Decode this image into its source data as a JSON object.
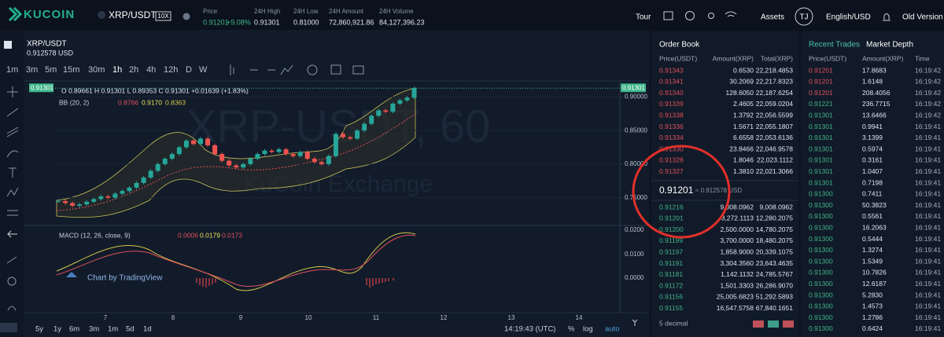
{
  "header": {
    "logo": "KUCOIN",
    "pair": "XRP/USDT",
    "leverage": "10X",
    "stats": [
      {
        "label": "Price",
        "value": "0.91201",
        "change": "+9.08%"
      },
      {
        "label": "24H High",
        "value": "0.91301"
      },
      {
        "label": "24H Low",
        "value": "0.81000"
      },
      {
        "label": "24H Amount",
        "value": "72,860,921.86"
      },
      {
        "label": "24H Volume",
        "value": "84,127,396.23"
      }
    ],
    "nav": [
      "Tour",
      "Assets",
      "TJ",
      "English/USD",
      "Old Version"
    ]
  },
  "chart": {
    "symbol": "XRP/USDT",
    "price_usd": "0.912578 USD",
    "intervals": [
      "1m",
      "3m",
      "5m",
      "15m",
      "30m",
      "1h",
      "2h",
      "4h",
      "12h",
      "D",
      "W"
    ],
    "ohlc": "O 0.89661  H 0.91301  L 0.89353  C 0.91301  +0.01639 (+1.83%)",
    "bb": {
      "label": "BB (20, 2)",
      "values": [
        "0.8766",
        "0.9170",
        "0.8363"
      ]
    },
    "macd": {
      "label": "MACD (12, 26, close, 9)",
      "values": [
        "0.0006",
        "0.0179",
        "0.0173"
      ]
    },
    "last_price": "0.91301",
    "watermark": "XRP-USDT, 60",
    "watermark_sub": "KuCoin Exchange",
    "credit": "Chart by TradingView",
    "ylim": [
      0.711,
      0.918
    ],
    "yticks": [
      {
        "value": 0.75,
        "label": "0.75000"
      },
      {
        "value": 0.8,
        "label": "0.80000"
      },
      {
        "value": 0.85,
        "label": "0.85000"
      },
      {
        "value": 0.9,
        "label": "0.90000"
      }
    ],
    "macd_ticks": [
      "0.0200",
      "0.0100",
      "0.0000"
    ],
    "xlabels": [
      "7",
      "8",
      "9",
      "10",
      "11",
      "12",
      "13",
      "14"
    ],
    "closes": [
      0.745,
      0.742,
      0.738,
      0.74,
      0.744,
      0.748,
      0.752,
      0.75,
      0.756,
      0.76,
      0.765,
      0.772,
      0.78,
      0.79,
      0.8,
      0.808,
      0.815,
      0.825,
      0.835,
      0.83,
      0.838,
      0.828,
      0.815,
      0.805,
      0.798,
      0.795,
      0.8,
      0.808,
      0.815,
      0.82,
      0.818,
      0.822,
      0.815,
      0.812,
      0.818,
      0.808,
      0.803,
      0.8,
      0.812,
      0.845,
      0.84,
      0.838,
      0.85,
      0.86,
      0.872,
      0.88,
      0.878,
      0.89,
      0.895,
      0.899,
      0.913
    ],
    "ranges": [
      "5y",
      "1y",
      "6m",
      "3m",
      "1m",
      "5d",
      "1d"
    ],
    "time": "14:19:43 (UTC)",
    "options": [
      "%",
      "log",
      "auto"
    ]
  },
  "order_book": {
    "title": "Order Book",
    "columns": [
      "Price(USDT)",
      "Amount(XRP)",
      "Total(XRP)"
    ],
    "asks": [
      [
        "0.91343",
        "0.6530",
        "22,218.4853"
      ],
      [
        "0.91341",
        "30.2069",
        "22,217.8323"
      ],
      [
        "0.91340",
        "128.6050",
        "22,187.6254"
      ],
      [
        "0.91339",
        "2.4605",
        "22,059.0204"
      ],
      [
        "0.91338",
        "1.3792",
        "22,056.5599"
      ],
      [
        "0.91336",
        "1.5671",
        "22,055.1807"
      ],
      [
        "0.91334",
        "6.6558",
        "22,053.6136"
      ],
      [
        "0.91330",
        "23.8466",
        "22,046.9578"
      ],
      [
        "0.91328",
        "1.8046",
        "22,023.1112"
      ],
      [
        "0.91327",
        "1.3810",
        "22,021.3066"
      ]
    ],
    "mid_price": "0.91201",
    "mid_usd": "≈ 0.912578 USD",
    "bids": [
      [
        "0.91216",
        "9,008.0962",
        "9,008.0962"
      ],
      [
        "0.91201",
        "3,272.1113",
        "12,280.2075"
      ],
      [
        "0.91200",
        "2,500.0000",
        "14,780.2075"
      ],
      [
        "0.91199",
        "3,700.0000",
        "18,480.2075"
      ],
      [
        "0.91197",
        "1,858.9000",
        "20,339.1075"
      ],
      [
        "0.91191",
        "3,304.3560",
        "23,643.4635"
      ],
      [
        "0.91181",
        "1,142.1132",
        "24,785.5767"
      ],
      [
        "0.91172",
        "1,501.3303",
        "26,286.9070"
      ],
      [
        "0.91156",
        "25,005.6823",
        "51,292.5893"
      ],
      [
        "0.91155",
        "16,547.5758",
        "67,840.1651"
      ]
    ],
    "decimals": "5 decimal"
  },
  "trades": {
    "tabs": [
      "Recent Trades",
      "Market Depth"
    ],
    "columns": [
      "Price(USDT)",
      "Amount(XRP)",
      "Time"
    ],
    "rows": [
      [
        "0.91201",
        "17.8683",
        "16:19:42"
      ],
      [
        "0.91201",
        "1.6148",
        "16:19:42"
      ],
      [
        "0.91201",
        "208.4056",
        "16:19:42"
      ],
      [
        "0.91221",
        "236.7715",
        "16:19:42"
      ],
      [
        "0.91301",
        "13.6466",
        "16:19:42"
      ],
      [
        "0.91301",
        "0.9941",
        "16:19:41"
      ],
      [
        "0.91301",
        "3.1399",
        "16:19:41"
      ],
      [
        "0.91301",
        "0.5974",
        "16:19:41"
      ],
      [
        "0.91301",
        "0.3161",
        "16:19:41"
      ],
      [
        "0.91301",
        "1.0407",
        "16:19:41"
      ],
      [
        "0.91301",
        "0.7198",
        "16:19:41"
      ],
      [
        "0.91300",
        "0.7411",
        "16:19:41"
      ],
      [
        "0.91300",
        "50.3823",
        "16:19:41"
      ],
      [
        "0.91300",
        "0.5561",
        "16:19:41"
      ],
      [
        "0.91300",
        "16.2063",
        "16:19:41"
      ],
      [
        "0.91300",
        "0.5444",
        "16:19:41"
      ],
      [
        "0.91300",
        "1.3274",
        "16:19:41"
      ],
      [
        "0.91300",
        "1.5349",
        "16:19:41"
      ],
      [
        "0.91300",
        "10.7826",
        "16:19:41"
      ],
      [
        "0.91300",
        "12.6187",
        "16:19:41"
      ],
      [
        "0.91300",
        "5.2830",
        "16:19:41"
      ],
      [
        "0.91300",
        "1.4573",
        "16:19:41"
      ],
      [
        "0.91300",
        "1.2786",
        "16:19:41"
      ],
      [
        "0.91300",
        "0.6424",
        "16:19:41"
      ]
    ],
    "colors": [
      "#e0505c",
      "#e0505c",
      "#e0505c",
      "#3fb68b",
      "#3fb68b",
      "#3fb68b",
      "#3fb68b",
      "#3fb68b",
      "#3fb68b",
      "#3fb68b",
      "#3fb68b",
      "#3fb68b",
      "#3fb68b",
      "#3fb68b",
      "#3fb68b",
      "#3fb68b",
      "#3fb68b",
      "#3fb68b",
      "#3fb68b",
      "#3fb68b",
      "#3fb68b",
      "#3fb68b",
      "#3fb68b",
      "#3fb68b"
    ]
  }
}
